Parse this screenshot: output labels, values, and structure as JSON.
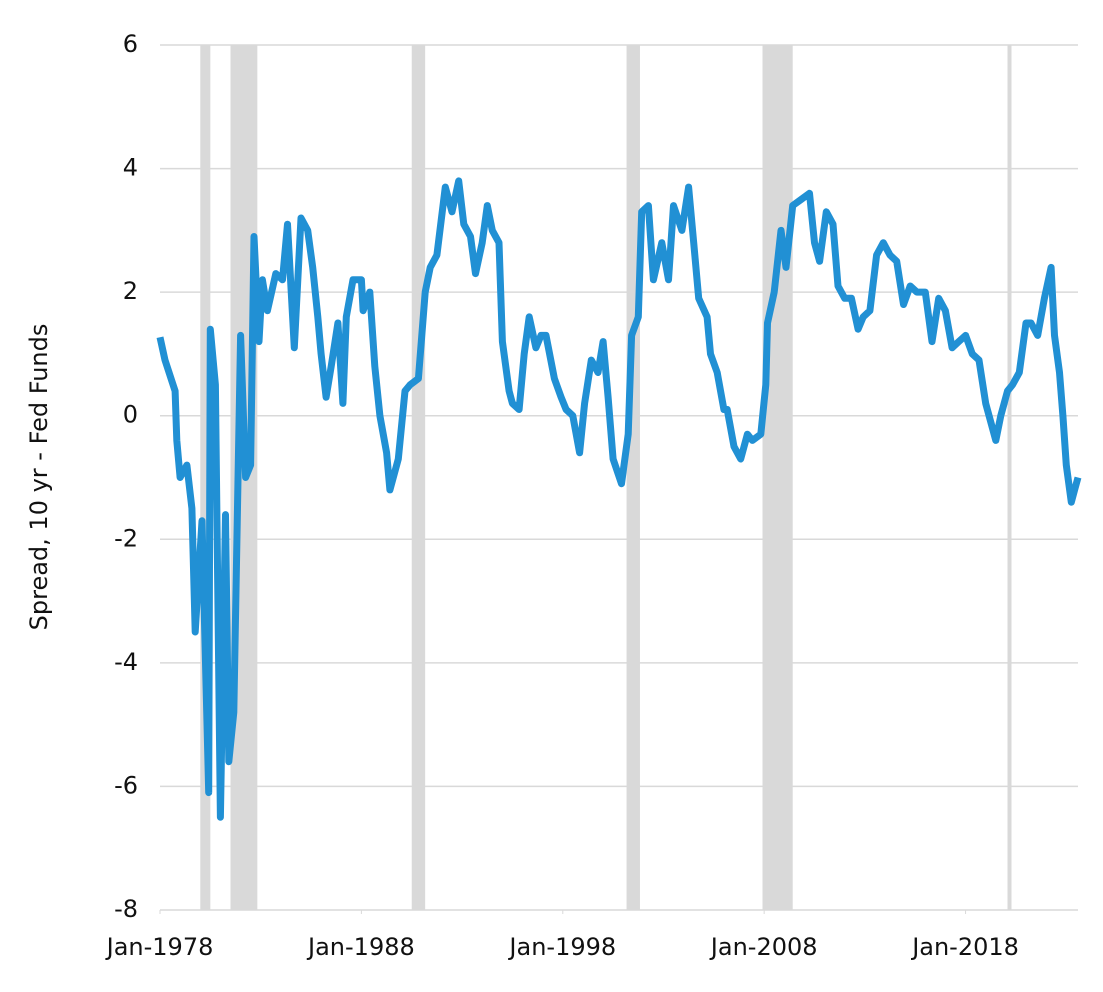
{
  "chart_data": {
    "type": "line",
    "y_label": "Spread, 10 yr - Fed Funds",
    "color": "#2190d4",
    "shade_color": "#d9d9d9",
    "grid": true,
    "xlim": [
      "1978-01",
      "2023-08"
    ],
    "ylim": [
      -8,
      6
    ],
    "yticks": [
      -8,
      -6,
      -4,
      -2,
      0,
      2,
      4,
      6
    ],
    "xticks": [
      {
        "value": "1978-01",
        "label": "Jan-1978"
      },
      {
        "value": "1988-01",
        "label": "Jan-1988"
      },
      {
        "value": "1998-01",
        "label": "Jan-1998"
      },
      {
        "value": "2008-01",
        "label": "Jan-2008"
      },
      {
        "value": "2018-01",
        "label": "Jan-2018"
      }
    ],
    "shaded_periods": [
      [
        "1980-01",
        "1980-07"
      ],
      [
        "1981-07",
        "1982-11"
      ],
      [
        "1990-07",
        "1991-03"
      ],
      [
        "2001-03",
        "2001-11"
      ],
      [
        "2007-12",
        "2009-06"
      ],
      [
        "2020-02",
        "2020-04"
      ]
    ],
    "x": [
      "1978-01",
      "1978-04",
      "1978-10",
      "1978-11",
      "1979-01",
      "1979-05",
      "1979-08",
      "1979-10",
      "1980-02",
      "1980-06",
      "1980-07",
      "1980-10",
      "1981-01",
      "1981-04",
      "1981-06",
      "1981-09",
      "1982-01",
      "1982-04",
      "1982-07",
      "1982-09",
      "1982-12",
      "1983-02",
      "1983-05",
      "1983-10",
      "1984-02",
      "1984-05",
      "1984-09",
      "1985-01",
      "1985-05",
      "1985-08",
      "1985-11",
      "1986-01",
      "1986-04",
      "1986-07",
      "1986-11",
      "1987-02",
      "1987-04",
      "1987-08",
      "1988-01",
      "1988-02",
      "1988-06",
      "1988-09",
      "1988-12",
      "1989-04",
      "1989-06",
      "1989-11",
      "1990-03",
      "1990-06",
      "1990-11",
      "1991-03",
      "1991-06",
      "1991-10",
      "1992-03",
      "1992-07",
      "1992-11",
      "1993-02",
      "1993-06",
      "1993-09",
      "1994-01",
      "1994-04",
      "1994-07",
      "1994-11",
      "1995-01",
      "1995-05",
      "1995-07",
      "1995-11",
      "1996-02",
      "1996-05",
      "1996-09",
      "1996-12",
      "1997-03",
      "1997-08",
      "1997-12",
      "1998-03",
      "1998-07",
      "1998-11",
      "1999-02",
      "1999-06",
      "1999-10",
      "2000-01",
      "2000-04",
      "2000-07",
      "2000-12",
      "2001-04",
      "2001-06",
      "2001-10",
      "2001-12",
      "2002-04",
      "2002-07",
      "2002-12",
      "2003-04",
      "2003-07",
      "2003-12",
      "2004-04",
      "2004-07",
      "2004-10",
      "2005-03",
      "2005-05",
      "2005-09",
      "2006-01",
      "2006-03",
      "2006-07",
      "2006-11",
      "2007-03",
      "2007-06",
      "2007-11",
      "2008-02",
      "2008-03",
      "2008-07",
      "2008-11",
      "2009-02",
      "2009-06",
      "2009-11",
      "2010-04",
      "2010-07",
      "2010-10",
      "2011-02",
      "2011-06",
      "2011-09",
      "2012-01",
      "2012-05",
      "2012-09",
      "2012-12",
      "2013-04",
      "2013-08",
      "2013-12",
      "2014-04",
      "2014-08",
      "2014-12",
      "2015-04",
      "2015-08",
      "2016-01",
      "2016-05",
      "2016-09",
      "2017-01",
      "2017-05",
      "2017-09",
      "2018-01",
      "2018-05",
      "2018-09",
      "2019-01",
      "2019-07",
      "2019-10",
      "2020-02",
      "2020-05",
      "2020-09",
      "2021-01",
      "2021-04",
      "2021-08",
      "2021-12",
      "2022-04",
      "2022-06",
      "2022-09",
      "2022-11",
      "2023-01",
      "2023-04",
      "2023-06",
      "2023-08"
    ],
    "values": [
      1.27,
      0.9,
      0.4,
      -0.4,
      -1.0,
      -0.8,
      -1.5,
      -3.5,
      -1.7,
      -6.1,
      1.4,
      0.5,
      -6.5,
      -1.6,
      -5.6,
      -4.8,
      1.3,
      -1.0,
      -0.8,
      2.9,
      1.2,
      2.2,
      1.7,
      2.3,
      2.2,
      3.1,
      1.1,
      3.2,
      3.0,
      2.4,
      1.6,
      1.0,
      0.3,
      0.8,
      1.5,
      0.2,
      1.6,
      2.2,
      2.2,
      1.7,
      2.0,
      0.8,
      0.0,
      -0.6,
      -1.2,
      -0.7,
      0.4,
      0.5,
      0.6,
      2.0,
      2.4,
      2.6,
      3.7,
      3.3,
      3.8,
      3.1,
      2.9,
      2.3,
      2.8,
      3.4,
      3.0,
      2.8,
      1.2,
      0.4,
      0.2,
      0.1,
      1.0,
      1.6,
      1.1,
      1.3,
      1.3,
      0.6,
      0.3,
      0.1,
      0.0,
      -0.6,
      0.2,
      0.9,
      0.7,
      1.2,
      0.3,
      -0.7,
      -1.1,
      -0.3,
      1.3,
      1.6,
      3.3,
      3.4,
      2.2,
      2.8,
      2.2,
      3.4,
      3.0,
      3.7,
      2.8,
      1.9,
      1.6,
      1.0,
      0.7,
      0.1,
      0.1,
      -0.5,
      -0.7,
      -0.3,
      -0.4,
      -0.3,
      0.5,
      1.5,
      2.0,
      3.0,
      2.4,
      3.4,
      3.5,
      3.6,
      2.8,
      2.5,
      3.3,
      3.1,
      2.1,
      1.9,
      1.9,
      1.4,
      1.6,
      1.7,
      2.6,
      2.8,
      2.6,
      2.5,
      1.8,
      2.1,
      2.0,
      2.0,
      1.2,
      1.9,
      1.7,
      1.1,
      1.2,
      1.3,
      1.0,
      0.9,
      0.2,
      -0.4,
      0.0,
      0.4,
      0.5,
      0.7,
      1.5,
      1.5,
      1.3,
      1.9,
      2.4,
      1.3,
      0.7,
      0.0,
      -0.8,
      -1.4,
      -1.2,
      -1.0
    ]
  }
}
